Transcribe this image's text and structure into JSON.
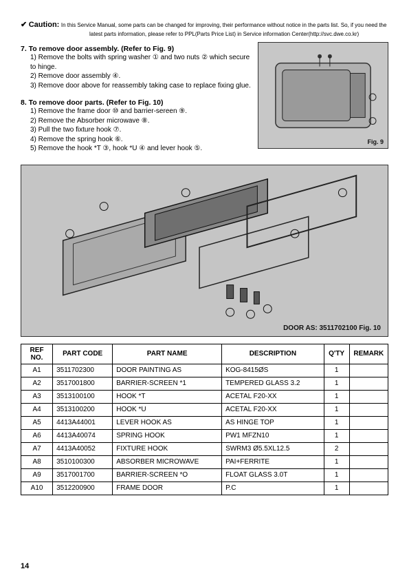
{
  "caution": {
    "check": "✔",
    "label": "Caution:",
    "body_line1": "In this Service Manual, some parts can be changed for improving, their performance without notice in the parts list. So, if you need the",
    "body_line2": "latest parts information, please refer to PPL(Parts Price List) in Service information Center(http://svc.dwe.co.kr)"
  },
  "section7": {
    "heading": "7. To remove door assembly. (Refer to Fig. 9)",
    "steps": [
      "1) Remove the bolts with spring washer ① and two nuts ② which secure to hinge.",
      "2) Remove door assembly ④.",
      "3) Remove door above for reassembly taking case to replace fixing glue."
    ]
  },
  "section8": {
    "heading": "8. To remove door parts. (Refer to Fig. 10)",
    "steps": [
      "1) Remove the frame door ⑩ and barrier-sereen ⑨.",
      "2) Remove the Absorber microwave ⑧.",
      "3) Pull the two fixture hook ⑦.",
      "4) Remove the spring hook ⑥.",
      "5) Remove the hook *T ③, hook *U ④ and lever hook ⑤."
    ]
  },
  "fig9": {
    "label": "Fig. 9"
  },
  "fig10": {
    "label": "DOOR AS: 3511702100   Fig. 10"
  },
  "table": {
    "columns": [
      "REF NO.",
      "PART CODE",
      "PART NAME",
      "DESCRIPTION",
      "Q'TY",
      "REMARK"
    ],
    "rows": [
      [
        "A1",
        "3511702300",
        "DOOR PAINTING AS",
        "KOG-8415ØS",
        "1",
        ""
      ],
      [
        "A2",
        "3517001800",
        "BARRIER-SCREEN *1",
        "TEMPERED GLASS 3.2",
        "1",
        ""
      ],
      [
        "A3",
        "3513100100",
        "HOOK *T",
        "ACETAL F20-XX",
        "1",
        ""
      ],
      [
        "A4",
        "3513100200",
        "HOOK *U",
        "ACETAL F20-XX",
        "1",
        ""
      ],
      [
        "A5",
        "4413A44001",
        "LEVER HOOK AS",
        "AS HINGE TOP",
        "1",
        ""
      ],
      [
        "A6",
        "4413A40074",
        "SPRING HOOK",
        "PW1 MFZN10",
        "1",
        ""
      ],
      [
        "A7",
        "4413A40052",
        "FIXTURE HOOK",
        "SWRM3 Ø5.5XL12.5",
        "2",
        ""
      ],
      [
        "A8",
        "3510100300",
        "ABSORBER MICROWAVE",
        "PAI+FERRITE",
        "1",
        ""
      ],
      [
        "A9",
        "3517001700",
        "BARRIER-SCREEN *O",
        "FLOAT GLASS 3.0T",
        "1",
        ""
      ],
      [
        "A10",
        "3512200900",
        "FRAME DOOR",
        "P.C",
        "1",
        ""
      ]
    ],
    "col_align": [
      "center",
      "left",
      "left",
      "left",
      "center",
      "left"
    ]
  },
  "page_number": "14",
  "colors": {
    "page_bg": "#ffffff",
    "text": "#000000",
    "fig_bg": "#c5c5c5",
    "border": "#000000"
  },
  "typography": {
    "body_fontsize_pt": 10,
    "caution_body_fontsize_pt": 8,
    "heading_fontsize_pt": 10.5,
    "table_fontsize_pt": 10,
    "pagenum_fontsize_pt": 11,
    "font_family": "Arial"
  }
}
